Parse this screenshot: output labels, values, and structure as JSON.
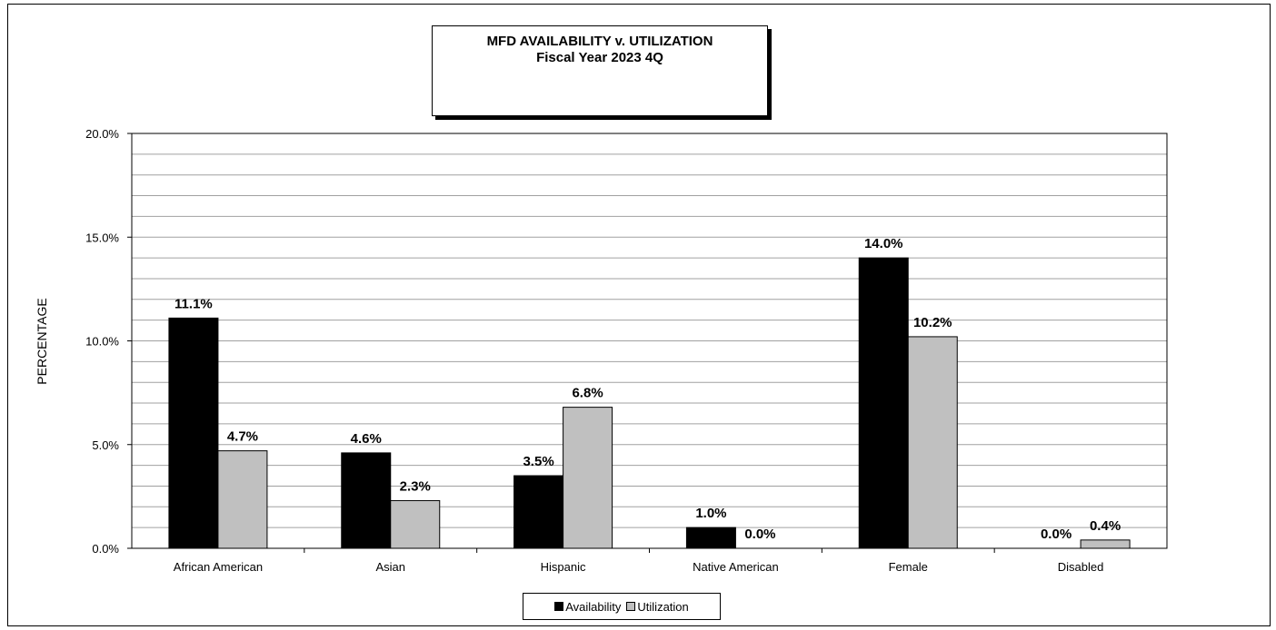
{
  "chart_data": {
    "type": "bar",
    "title": "MFD AVAILABILITY v. UTILIZATION",
    "subtitle": "Fiscal Year 2023 4Q",
    "xlabel": "",
    "ylabel": "PERCENTAGE",
    "ylim": [
      0,
      20
    ],
    "yticks": [
      "0.0%",
      "5.0%",
      "10.0%",
      "15.0%",
      "20.0%"
    ],
    "categories": [
      "African American",
      "Asian",
      "Hispanic",
      "Native American",
      "Female",
      "Disabled"
    ],
    "series": [
      {
        "name": "Availability",
        "color": "#000000",
        "values": [
          11.1,
          4.6,
          3.5,
          1.0,
          14.0,
          0.0
        ],
        "labels": [
          "11.1%",
          "4.6%",
          "3.5%",
          "1.0%",
          "14.0%",
          "0.0%"
        ]
      },
      {
        "name": "Utilization",
        "color": "#c0c0c0",
        "values": [
          4.7,
          2.3,
          6.8,
          0.0,
          10.2,
          0.4
        ],
        "labels": [
          "4.7%",
          "2.3%",
          "6.8%",
          "0.0%",
          "10.2%",
          "0.4%"
        ]
      }
    ],
    "grid": true,
    "legend_position": "bottom"
  }
}
